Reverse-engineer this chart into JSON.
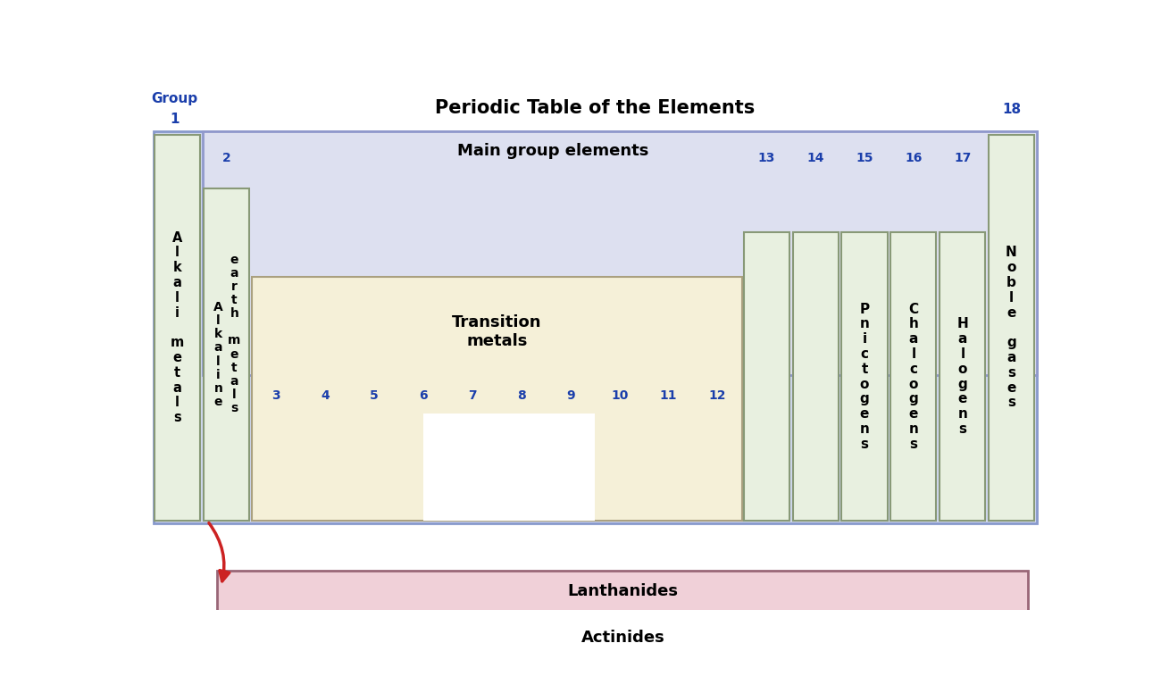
{
  "title": "Periodic Table of the Elements",
  "title_fontsize": 15,
  "title_fontweight": "bold",
  "bg_color": "#ffffff",
  "outer_border_color": "#8899cc",
  "outer_border_fill": "#d0d8f0",
  "group_label_color": "#1a3eab",
  "main_group_box_fill": "#dde0f0",
  "main_group_box_edge": "#9099cc",
  "main_group_label": "Main group elements",
  "main_group_label_fontsize": 13,
  "transition_box_fill": "#f5f0d8",
  "transition_box_edge": "#aaa080",
  "transition_label": "Transition\nmetals",
  "transition_label_fontsize": 13,
  "col_fill": "#e8f0e0",
  "col_edge": "#889977",
  "pnictogen_label": "P\nn\ni\nc\nt\no\ng\ne\nn\ns",
  "chalcogen_label": "C\nh\na\nl\nc\no\ng\ne\nn\ns",
  "halogen_label": "H\na\nl\no\ng\ne\nn\ns",
  "noble_label": "N\no\nb\nl\ne\n \ng\na\ns\ne\ns",
  "alkali_label": "A\nl\nk\na\nl\ni\n \nm\ne\nt\na\nl\ns",
  "alkaline1_label": "A\nl\nk\na\nl\ni\nn\ne",
  "alkaline2_label": "e\na\nr\nt\nh\n \nm\ne\nt\na\nl\ns",
  "lanthanide_fill": "#f0d0d8",
  "lanthanide_edge": "#996677",
  "lanthanide_label": "Lanthanides",
  "actinide_fill": "#f0d0d8",
  "actinide_edge": "#996677",
  "actinide_label": "Actinides",
  "arrow_color": "#cc2222",
  "white_box_fill": "#ffffff",
  "group_num_color": "#1a3eab"
}
